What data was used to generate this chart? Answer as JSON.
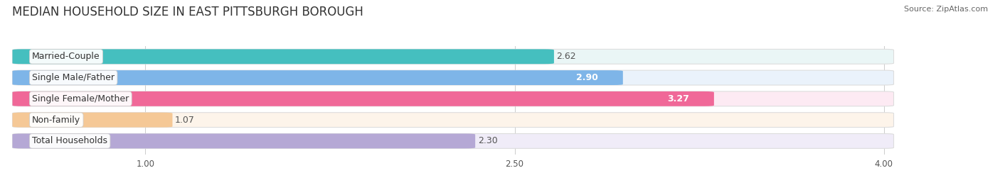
{
  "title": "MEDIAN HOUSEHOLD SIZE IN EAST PITTSBURGH BOROUGH",
  "source": "Source: ZipAtlas.com",
  "categories": [
    "Married-Couple",
    "Single Male/Father",
    "Single Female/Mother",
    "Non-family",
    "Total Households"
  ],
  "values": [
    2.62,
    2.9,
    3.27,
    1.07,
    2.3
  ],
  "bar_colors": [
    "#45bfbf",
    "#7eb5e8",
    "#f06898",
    "#f5c896",
    "#b5a8d5"
  ],
  "bar_bg_colors": [
    "#eaf6f6",
    "#eaf2fb",
    "#fdeaf3",
    "#fdf4ea",
    "#f0ecf8"
  ],
  "value_inside": [
    false,
    true,
    true,
    false,
    false
  ],
  "value_colors_inside": "#ffffff",
  "value_colors_outside": "#555555",
  "xlim_data": [
    0.5,
    4.0
  ],
  "xstart": 0.5,
  "xticks": [
    1.0,
    2.5,
    4.0
  ],
  "xtick_labels": [
    "1.00",
    "2.50",
    "4.00"
  ],
  "title_fontsize": 12,
  "source_fontsize": 8,
  "bar_label_fontsize": 9,
  "value_fontsize": 9,
  "background_color": "#ffffff"
}
